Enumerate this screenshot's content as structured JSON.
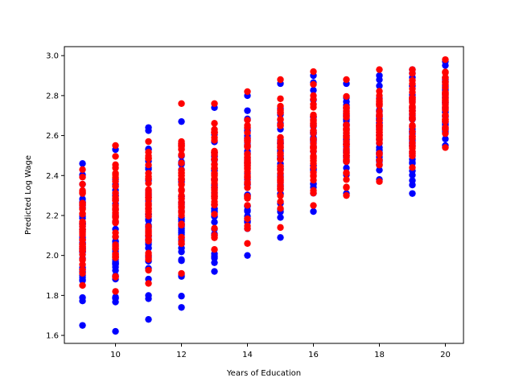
{
  "chart_data": {
    "type": "scatter",
    "xlabel": "Years of Education",
    "ylabel": "Predicted Log Wage",
    "xlim": [
      8.45,
      20.55
    ],
    "ylim": [
      1.56,
      3.045
    ],
    "xticks": [
      10,
      12,
      14,
      16,
      18,
      20
    ],
    "yticks": [
      1.6,
      1.8,
      2.0,
      2.2,
      2.4,
      2.6,
      2.8,
      3.0
    ],
    "grid": false,
    "colors": {
      "series_a": "#0000ff",
      "series_b": "#ff0000"
    },
    "series": [
      {
        "color": "#0000ff",
        "ranges": [
          {
            "x": 9,
            "ymin": 1.65,
            "ymax": 2.46
          },
          {
            "x": 10,
            "ymin": 1.62,
            "ymax": 2.53
          },
          {
            "x": 11,
            "ymin": 1.68,
            "ymax": 2.64
          },
          {
            "x": 12,
            "ymin": 1.74,
            "ymax": 2.67
          },
          {
            "x": 13,
            "ymin": 1.92,
            "ymax": 2.74
          },
          {
            "x": 14,
            "ymin": 2.0,
            "ymax": 2.8
          },
          {
            "x": 15,
            "ymin": 2.09,
            "ymax": 2.86
          },
          {
            "x": 16,
            "ymin": 2.22,
            "ymax": 2.9
          },
          {
            "x": 17,
            "ymin": 2.31,
            "ymax": 2.86
          },
          {
            "x": 18,
            "ymin": 2.38,
            "ymax": 2.9
          },
          {
            "x": 19,
            "ymin": 2.31,
            "ymax": 2.93
          },
          {
            "x": 20,
            "ymin": 2.55,
            "ymax": 2.97
          }
        ]
      },
      {
        "color": "#ff0000",
        "ranges": [
          {
            "x": 9,
            "ymin": 1.85,
            "ymax": 2.43
          },
          {
            "x": 10,
            "ymin": 1.82,
            "ymax": 2.55
          },
          {
            "x": 11,
            "ymin": 1.86,
            "ymax": 2.57
          },
          {
            "x": 12,
            "ymin": 1.91,
            "ymax": 2.76
          },
          {
            "x": 13,
            "ymin": 2.03,
            "ymax": 2.76
          },
          {
            "x": 14,
            "ymin": 2.06,
            "ymax": 2.82
          },
          {
            "x": 15,
            "ymin": 2.14,
            "ymax": 2.88
          },
          {
            "x": 16,
            "ymin": 2.25,
            "ymax": 2.92
          },
          {
            "x": 17,
            "ymin": 2.3,
            "ymax": 2.88
          },
          {
            "x": 18,
            "ymin": 2.37,
            "ymax": 2.93
          },
          {
            "x": 19,
            "ymin": 2.44,
            "ymax": 2.93
          },
          {
            "x": 20,
            "ymin": 2.54,
            "ymax": 2.98
          }
        ]
      }
    ]
  }
}
